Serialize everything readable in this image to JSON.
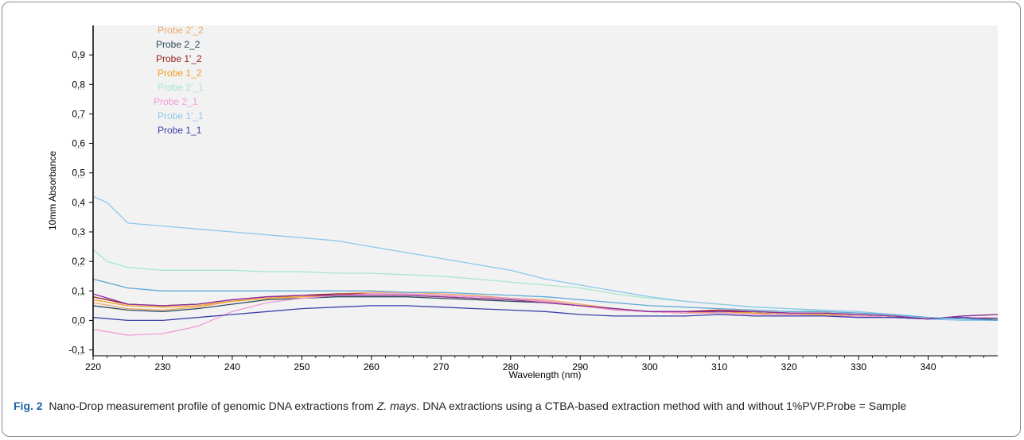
{
  "caption": {
    "figure_label": "Fig. 2",
    "text_before_italic": "Nano-Drop measurement profile of genomic DNA extractions from ",
    "italic_text": "Z. mays",
    "text_after_italic": ". DNA extractions using a CTBA-based extraction method with and without 1%PVP.Probe = Sample"
  },
  "chart_data": {
    "type": "line",
    "xlabel": "Wavelength (nm)",
    "ylabel": "10mm Absorbance",
    "xlim": [
      220,
      350
    ],
    "ylim": [
      -0.12,
      1.0
    ],
    "x_ticks": [
      220,
      230,
      240,
      250,
      260,
      270,
      280,
      290,
      300,
      310,
      320,
      330,
      340
    ],
    "x_tick_labels": [
      "220",
      "230",
      "240",
      "250",
      "260",
      "270",
      "280",
      "290",
      "300",
      "310",
      "320",
      "330",
      "340"
    ],
    "y_ticks": [
      -0.1,
      0.0,
      0.1,
      0.2,
      0.3,
      0.4,
      0.5,
      0.6,
      0.7,
      0.8,
      0.9
    ],
    "y_tick_labels": [
      "-0,1",
      "0,0",
      "0,1",
      "0,2",
      "0,3",
      "0,4",
      "0,5",
      "0,6",
      "0,7",
      "0,8",
      "0,9"
    ],
    "grid": false,
    "legend_position": "top-left",
    "plot_background": "#f2f2f2",
    "series": [
      {
        "name": "Probe 2'_2",
        "color": "#f0a868",
        "x": [
          220,
          225,
          230,
          235,
          240,
          245,
          250,
          255,
          260,
          265,
          270,
          275,
          280,
          285,
          290,
          295,
          300,
          305,
          310,
          315,
          320,
          325,
          330,
          335,
          340,
          345,
          350
        ],
        "y": [
          0.06,
          0.04,
          0.035,
          0.045,
          0.065,
          0.075,
          0.085,
          0.09,
          0.095,
          0.095,
          0.09,
          0.085,
          0.075,
          0.07,
          0.055,
          0.04,
          0.03,
          0.025,
          0.025,
          0.02,
          0.02,
          0.02,
          0.015,
          0.01,
          0.005,
          0.01,
          0.01
        ]
      },
      {
        "name": "Probe 2_2",
        "color": "#2b4a5a",
        "x": [
          220,
          225,
          230,
          235,
          240,
          245,
          250,
          255,
          260,
          265,
          270,
          275,
          280,
          285,
          290,
          295,
          300,
          305,
          310,
          315,
          320,
          325,
          330,
          335,
          340,
          345,
          350
        ],
        "y": [
          0.05,
          0.035,
          0.03,
          0.04,
          0.055,
          0.07,
          0.075,
          0.08,
          0.08,
          0.08,
          0.075,
          0.07,
          0.065,
          0.06,
          0.05,
          0.04,
          0.03,
          0.025,
          0.03,
          0.025,
          0.02,
          0.02,
          0.015,
          0.01,
          0.005,
          0.01,
          0.005
        ]
      },
      {
        "name": "Probe 1'_2",
        "color": "#9b1c1c",
        "x": [
          220,
          225,
          230,
          235,
          240,
          245,
          250,
          255,
          260,
          265,
          270,
          275,
          280,
          285,
          290,
          295,
          300,
          305,
          310,
          315,
          320,
          325,
          330,
          335,
          340,
          345,
          350
        ],
        "y": [
          0.08,
          0.055,
          0.05,
          0.055,
          0.07,
          0.08,
          0.085,
          0.09,
          0.09,
          0.09,
          0.085,
          0.08,
          0.075,
          0.065,
          0.05,
          0.035,
          0.03,
          0.03,
          0.035,
          0.03,
          0.025,
          0.025,
          0.02,
          0.015,
          0.005,
          0.015,
          0.02
        ]
      },
      {
        "name": "Probe 1_2",
        "color": "#f0a020",
        "x": [
          220,
          225,
          230,
          235,
          240,
          245,
          250,
          255,
          260,
          265,
          270,
          275,
          280,
          285,
          290,
          295,
          300,
          305,
          310,
          315,
          320,
          325,
          330,
          335,
          340,
          345,
          350
        ],
        "y": [
          0.07,
          0.05,
          0.045,
          0.05,
          0.065,
          0.075,
          0.08,
          0.085,
          0.085,
          0.085,
          0.08,
          0.075,
          0.07,
          0.06,
          0.05,
          0.04,
          0.03,
          0.025,
          0.03,
          0.025,
          0.02,
          0.02,
          0.015,
          0.01,
          0.005,
          0.01,
          0.01
        ]
      },
      {
        "name": "Probe 2'_1",
        "color": "#a6e8c8",
        "x": [
          220,
          222,
          225,
          230,
          235,
          240,
          245,
          250,
          255,
          260,
          265,
          270,
          275,
          280,
          285,
          290,
          295,
          300,
          305,
          310,
          315,
          320,
          325,
          330,
          335,
          340,
          345,
          350
        ],
        "y": [
          0.24,
          0.2,
          0.18,
          0.17,
          0.17,
          0.17,
          0.165,
          0.165,
          0.16,
          0.16,
          0.155,
          0.15,
          0.14,
          0.13,
          0.12,
          0.11,
          0.09,
          0.075,
          0.065,
          0.055,
          0.045,
          0.04,
          0.03,
          0.025,
          0.015,
          0.005,
          0.0,
          0.0
        ]
      },
      {
        "name": "Probe 2_1",
        "color": "#f09ad8",
        "x": [
          220,
          225,
          230,
          235,
          240,
          245,
          250,
          255,
          260,
          265,
          270,
          275,
          280,
          285,
          290,
          295,
          300,
          305,
          310,
          315,
          320,
          325,
          330,
          335,
          340,
          345,
          350
        ],
        "y": [
          -0.03,
          -0.05,
          -0.045,
          -0.02,
          0.03,
          0.06,
          0.075,
          0.085,
          0.09,
          0.09,
          0.085,
          0.08,
          0.075,
          0.065,
          0.05,
          0.035,
          0.03,
          0.025,
          0.025,
          0.02,
          0.02,
          0.015,
          0.015,
          0.01,
          0.005,
          0.01,
          0.01
        ]
      },
      {
        "name": "Probe 1'_1",
        "color": "#8ec8ea",
        "x": [
          220,
          222,
          225,
          230,
          235,
          240,
          245,
          250,
          255,
          260,
          265,
          270,
          275,
          280,
          285,
          290,
          295,
          300,
          305,
          310,
          315,
          320,
          325,
          330,
          335,
          340,
          345,
          350
        ],
        "y": [
          0.42,
          0.4,
          0.33,
          0.32,
          0.31,
          0.3,
          0.29,
          0.28,
          0.27,
          0.25,
          0.23,
          0.21,
          0.19,
          0.17,
          0.14,
          0.12,
          0.1,
          0.08,
          0.065,
          0.055,
          0.045,
          0.04,
          0.035,
          0.03,
          0.02,
          0.005,
          0.0,
          0.0
        ]
      },
      {
        "name": "Probe 1_1",
        "color": "#3a3fa8",
        "x": [
          220,
          225,
          230,
          235,
          240,
          245,
          250,
          255,
          260,
          265,
          270,
          275,
          280,
          285,
          290,
          295,
          300,
          305,
          310,
          315,
          320,
          325,
          330,
          335,
          340,
          345,
          350
        ],
        "y": [
          0.01,
          0.0,
          0.0,
          0.01,
          0.02,
          0.03,
          0.04,
          0.045,
          0.05,
          0.05,
          0.045,
          0.04,
          0.035,
          0.03,
          0.02,
          0.015,
          0.015,
          0.015,
          0.02,
          0.015,
          0.015,
          0.015,
          0.01,
          0.01,
          0.005,
          0.01,
          0.0
        ]
      },
      {
        "name": "",
        "color": "#8a2ca0",
        "x": [
          220,
          225,
          230,
          235,
          240,
          245,
          250,
          255,
          260,
          265,
          270,
          275,
          280,
          285,
          290,
          295,
          300,
          305,
          310,
          315,
          320,
          325,
          330,
          335,
          340,
          345,
          350
        ],
        "y": [
          0.09,
          0.055,
          0.05,
          0.055,
          0.07,
          0.08,
          0.085,
          0.085,
          0.085,
          0.085,
          0.08,
          0.075,
          0.07,
          0.06,
          0.05,
          0.04,
          0.03,
          0.03,
          0.03,
          0.03,
          0.025,
          0.025,
          0.02,
          0.015,
          0.005,
          0.015,
          0.02
        ]
      },
      {
        "name": "",
        "color": "#5fa8d8",
        "x": [
          220,
          225,
          230,
          235,
          240,
          245,
          250,
          255,
          260,
          265,
          270,
          275,
          280,
          285,
          290,
          295,
          300,
          305,
          310,
          315,
          320,
          325,
          330,
          335,
          340,
          345,
          350
        ],
        "y": [
          0.14,
          0.11,
          0.1,
          0.1,
          0.1,
          0.1,
          0.1,
          0.1,
          0.1,
          0.095,
          0.095,
          0.09,
          0.085,
          0.08,
          0.07,
          0.06,
          0.05,
          0.045,
          0.04,
          0.035,
          0.03,
          0.03,
          0.025,
          0.02,
          0.01,
          0.005,
          0.0
        ]
      }
    ]
  }
}
